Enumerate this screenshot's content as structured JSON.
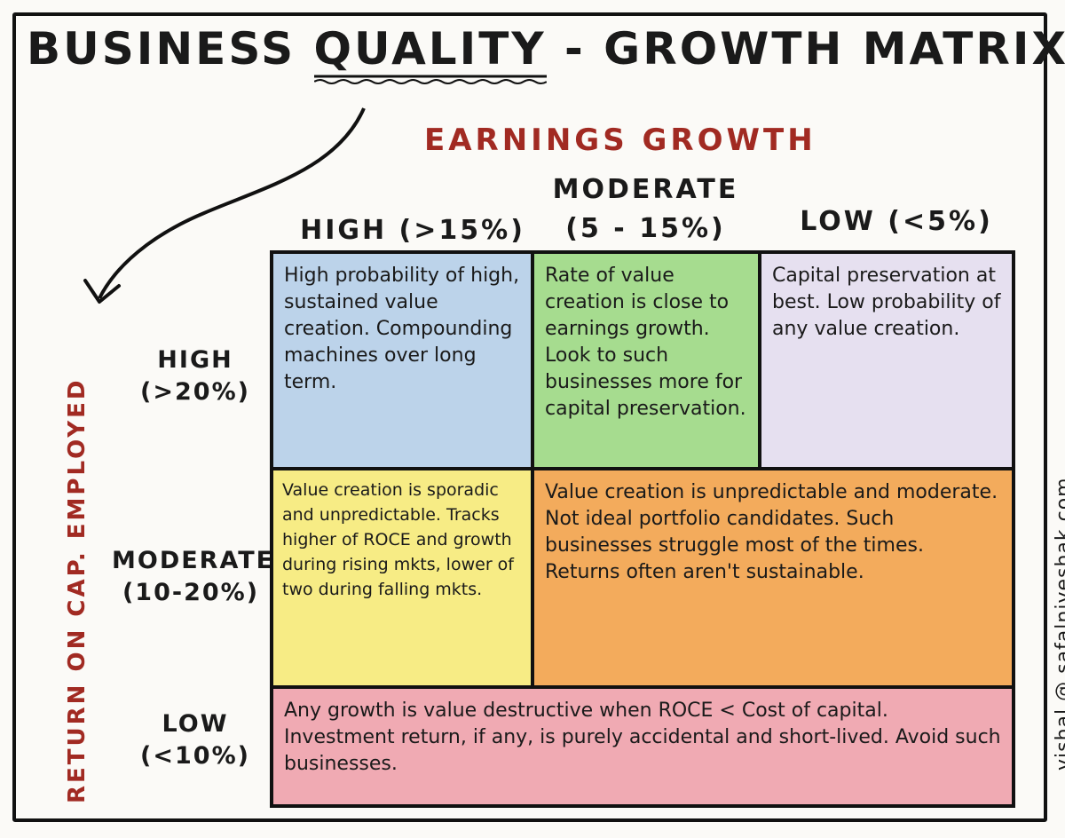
{
  "title": {
    "part1": "Business",
    "part2": "Quality",
    "part3": "- Growth Matrix"
  },
  "x_axis": {
    "title": "Earnings Growth",
    "columns": [
      {
        "line1": "HIGH (>15%)",
        "line2": ""
      },
      {
        "line1": "MODERATE",
        "line2": "(5 - 15%)"
      },
      {
        "line1": "LOW (<5%)",
        "line2": ""
      }
    ]
  },
  "y_axis": {
    "title": "RETURN ON CAP. EMPLOYED",
    "rows": [
      {
        "line1": "HIGH",
        "line2": "(>20%)"
      },
      {
        "line1": "MODERATE",
        "line2": "(10-20%)"
      },
      {
        "line1": "LOW",
        "line2": "(<10%)"
      }
    ]
  },
  "cells": {
    "high_high": "High probability of high, sustained value creation. Compounding machines over long term.",
    "high_moderate": "Rate of value creation is close to earnings growth. Look to such businesses more for capital preservation.",
    "high_low": "Capital preservation at best. Low probability of any value creation.",
    "moderate_high": "Value creation is sporadic and unpredictable. Tracks higher of ROCE and growth during rising mkts, lower of two during falling mkts.",
    "moderate_rest": "Value creation is unpredictable and moderate. Not ideal portfolio candidates. Such businesses struggle most of the times. Returns often aren't sustainable.",
    "low_all": "Any growth is value destructive when ROCE < Cost of capital. Investment return, if any, is purely accidental and short-lived. Avoid such businesses."
  },
  "credit": "vishal @ safalniveshak.com",
  "colors": {
    "accent": "#a12a22",
    "blue": "#bcd3ea",
    "green": "#a6dc8f",
    "purple": "#e6e0f0",
    "yellow": "#f7ec85",
    "orange": "#f3ab5c",
    "red": "#f0aab3"
  }
}
